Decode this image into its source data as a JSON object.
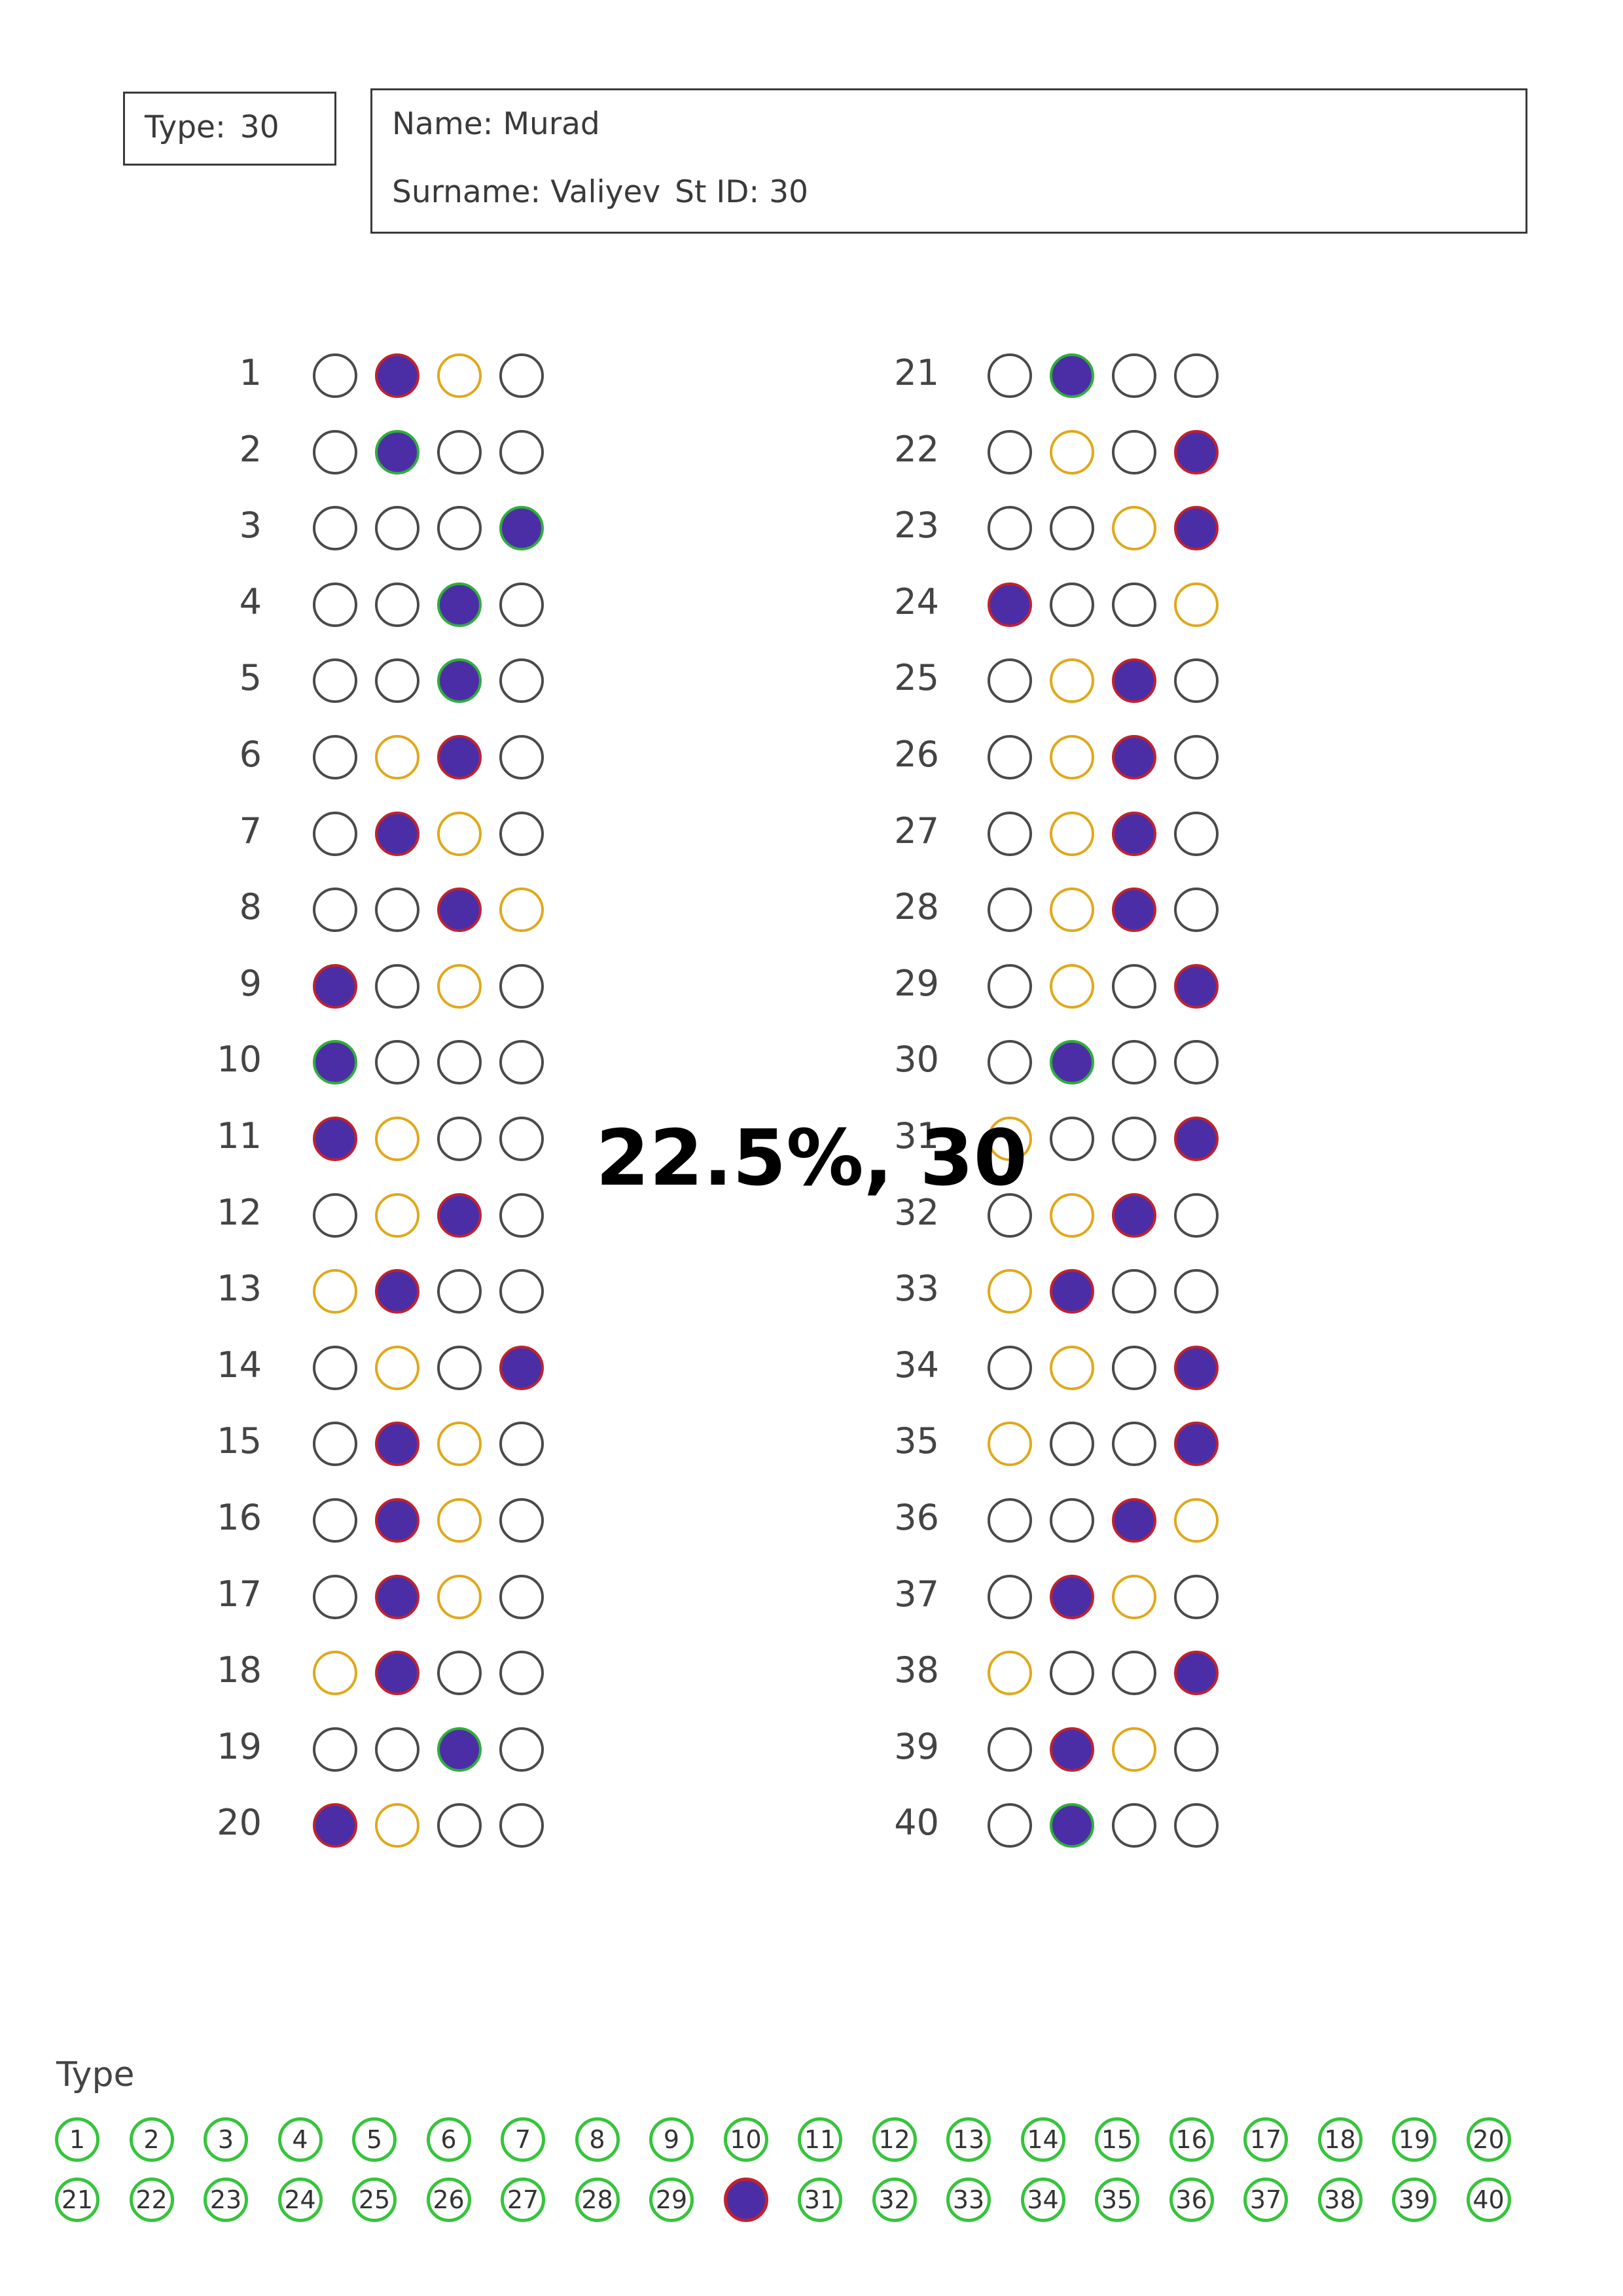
{
  "header": {
    "type_label": "Type:",
    "type_value": "30",
    "name_label": "Name:",
    "name_value": "Murad",
    "surname_label": "Surname:",
    "surname_value": "Valiyev",
    "stid_label": "St ID:",
    "stid_value": "30"
  },
  "score_text": "22.5%, 30",
  "bubble_colors": {
    "outline": "#4a4a4a",
    "answer_key": "#e0a81a",
    "fill": "#4b2ea5",
    "wrong_ring": "#c0222e",
    "correct_ring": "#2fae3a"
  },
  "questions": [
    {
      "n": "1",
      "chosen": 2,
      "key": 3
    },
    {
      "n": "2",
      "chosen": 2,
      "key": 2
    },
    {
      "n": "3",
      "chosen": 4,
      "key": 4
    },
    {
      "n": "4",
      "chosen": 3,
      "key": 3
    },
    {
      "n": "5",
      "chosen": 3,
      "key": 3
    },
    {
      "n": "6",
      "chosen": 3,
      "key": 2
    },
    {
      "n": "7",
      "chosen": 2,
      "key": 3
    },
    {
      "n": "8",
      "chosen": 3,
      "key": 4
    },
    {
      "n": "9",
      "chosen": 1,
      "key": 3
    },
    {
      "n": "10",
      "chosen": 1,
      "key": 1
    },
    {
      "n": "11",
      "chosen": 1,
      "key": 2
    },
    {
      "n": "12",
      "chosen": 3,
      "key": 2
    },
    {
      "n": "13",
      "chosen": 2,
      "key": 1
    },
    {
      "n": "14",
      "chosen": 4,
      "key": 2
    },
    {
      "n": "15",
      "chosen": 2,
      "key": 3
    },
    {
      "n": "16",
      "chosen": 2,
      "key": 3
    },
    {
      "n": "17",
      "chosen": 2,
      "key": 3
    },
    {
      "n": "18",
      "chosen": 2,
      "key": 1
    },
    {
      "n": "19",
      "chosen": 3,
      "key": 3
    },
    {
      "n": "20",
      "chosen": 1,
      "key": 2
    },
    {
      "n": "21",
      "chosen": 2,
      "key": 2
    },
    {
      "n": "22",
      "chosen": 4,
      "key": 2
    },
    {
      "n": "23",
      "chosen": 4,
      "key": 3
    },
    {
      "n": "24",
      "chosen": 1,
      "key": 4
    },
    {
      "n": "25",
      "chosen": 3,
      "key": 2
    },
    {
      "n": "26",
      "chosen": 3,
      "key": 2
    },
    {
      "n": "27",
      "chosen": 3,
      "key": 2
    },
    {
      "n": "28",
      "chosen": 3,
      "key": 2
    },
    {
      "n": "29",
      "chosen": 4,
      "key": 2
    },
    {
      "n": "30",
      "chosen": 2,
      "key": 2
    },
    {
      "n": "31",
      "chosen": 4,
      "key": 1
    },
    {
      "n": "32",
      "chosen": 3,
      "key": 2
    },
    {
      "n": "33",
      "chosen": 2,
      "key": 1
    },
    {
      "n": "34",
      "chosen": 4,
      "key": 2
    },
    {
      "n": "35",
      "chosen": 4,
      "key": 1
    },
    {
      "n": "36",
      "chosen": 3,
      "key": 4
    },
    {
      "n": "37",
      "chosen": 2,
      "key": 3
    },
    {
      "n": "38",
      "chosen": 4,
      "key": 1
    },
    {
      "n": "39",
      "chosen": 2,
      "key": 3
    },
    {
      "n": "40",
      "chosen": 2,
      "key": 2
    }
  ],
  "type_section": {
    "label": "Type",
    "options": [
      "1",
      "2",
      "3",
      "4",
      "5",
      "6",
      "7",
      "8",
      "9",
      "10",
      "11",
      "12",
      "13",
      "14",
      "15",
      "16",
      "17",
      "18",
      "19",
      "20",
      "21",
      "22",
      "23",
      "24",
      "25",
      "26",
      "27",
      "28",
      "29",
      "30",
      "31",
      "32",
      "33",
      "34",
      "35",
      "36",
      "37",
      "38",
      "39",
      "40"
    ],
    "selected": "30"
  }
}
